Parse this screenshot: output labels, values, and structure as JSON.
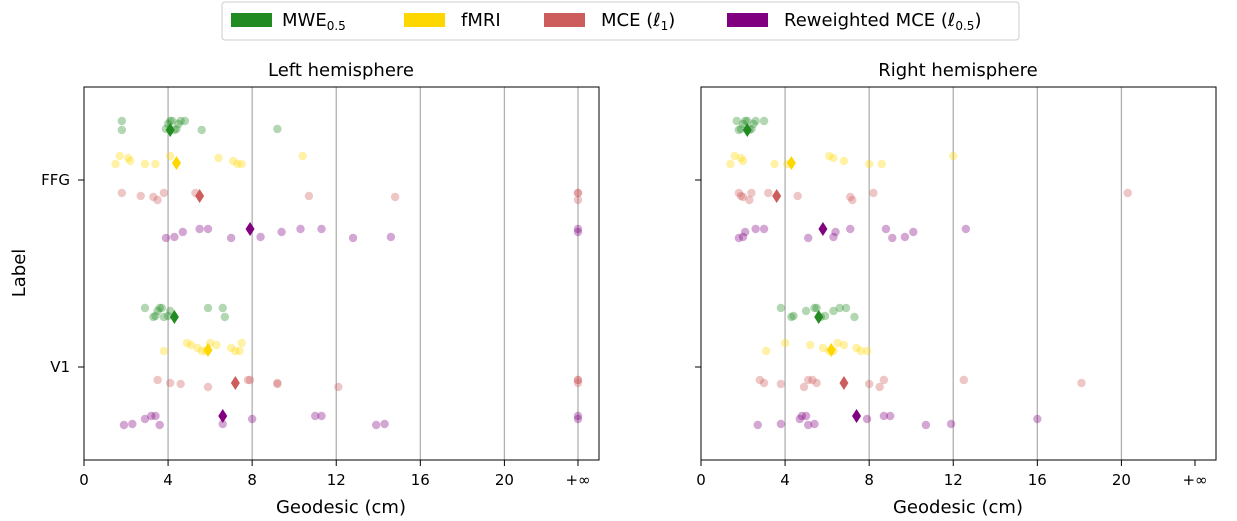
{
  "legend": {
    "items": [
      {
        "label": "MWE",
        "sub": "0.5",
        "suffix": "",
        "color": "#228b22"
      },
      {
        "label": "fMRI",
        "sub": "",
        "suffix": "",
        "color": "#ffd700"
      },
      {
        "label": "MCE (ℓ",
        "sub": "1",
        "suffix": ")",
        "color": "#cd5c5c"
      },
      {
        "label": "Reweighted MCE (ℓ",
        "sub": "0.5",
        "suffix": ")",
        "color": "#800080"
      }
    ]
  },
  "chart_data": [
    {
      "type": "scatter",
      "title": "Left hemisphere",
      "xlabel": "Geodesic (cm)",
      "ylabel": "Label",
      "xlim": [
        0,
        24.5
      ],
      "xticks": [
        "0",
        "4",
        "8",
        "12",
        "16",
        "20",
        "+∞"
      ],
      "xtick_values": [
        0,
        4,
        8,
        12,
        16,
        20,
        23.5
      ],
      "grid_vertical": [
        4,
        8,
        12,
        16,
        20,
        23.5
      ],
      "categories": [
        "FFG",
        "V1"
      ],
      "series": [
        {
          "name": "MWE0.5",
          "color": "#228b22",
          "points": {
            "FFG": [
              1.8,
              1.8,
              3.9,
              4.0,
              4.1,
              4.2,
              4.3,
              4.4,
              4.5,
              4.6,
              4.8,
              5.6,
              9.2
            ],
            "V1": [
              2.9,
              3.3,
              3.4,
              3.5,
              3.6,
              3.7,
              3.8,
              4.0,
              4.1,
              5.9,
              6.6,
              6.7
            ]
          },
          "marker": {
            "FFG": 4.1,
            "V1": 4.3
          }
        },
        {
          "name": "fMRI",
          "color": "#ffd700",
          "points": {
            "FFG": [
              1.5,
              1.7,
              2.1,
              2.2,
              2.9,
              3.4,
              4.1,
              6.4,
              7.1,
              7.3,
              7.5,
              10.4
            ],
            "V1": [
              3.8,
              4.9,
              5.1,
              5.4,
              5.6,
              5.8,
              6.0,
              6.3,
              7.0,
              7.2,
              7.4,
              7.5
            ]
          },
          "marker": {
            "FFG": 4.4,
            "V1": 5.9
          }
        },
        {
          "name": "MCE (ℓ1)",
          "color": "#cd5c5c",
          "points": {
            "FFG": [
              1.8,
              2.7,
              3.3,
              3.5,
              3.8,
              5.3,
              10.7,
              14.8,
              23.5,
              23.5,
              23.5
            ],
            "V1": [
              3.5,
              4.1,
              4.6,
              5.9,
              7.8,
              7.9,
              9.2,
              9.2,
              12.1,
              23.5,
              23.5,
              23.5
            ]
          },
          "marker": {
            "FFG": 5.5,
            "V1": 7.2
          }
        },
        {
          "name": "Reweighted MCE (ℓ0.5)",
          "color": "#800080",
          "points": {
            "FFG": [
              3.9,
              4.3,
              4.7,
              5.5,
              5.9,
              7.0,
              8.4,
              9.4,
              10.3,
              11.3,
              12.8,
              14.6,
              23.5,
              23.5
            ],
            "V1": [
              1.9,
              2.3,
              2.9,
              3.2,
              3.4,
              3.6,
              6.6,
              8.0,
              11.0,
              11.3,
              13.9,
              14.3,
              23.5,
              23.5
            ]
          },
          "marker": {
            "FFG": 7.9,
            "V1": 6.6
          }
        }
      ]
    },
    {
      "type": "scatter",
      "title": "Right hemisphere",
      "xlabel": "Geodesic (cm)",
      "ylabel": "",
      "xlim": [
        0,
        24.5
      ],
      "xticks": [
        "0",
        "4",
        "8",
        "12",
        "16",
        "20",
        "+∞"
      ],
      "xtick_values": [
        0,
        4,
        8,
        12,
        16,
        20,
        23.5
      ],
      "grid_vertical": [
        4,
        8,
        12,
        16,
        20
      ],
      "categories": [
        "FFG",
        "V1"
      ],
      "series": [
        {
          "name": "MWE0.5",
          "color": "#228b22",
          "points": {
            "FFG": [
              1.7,
              1.8,
              1.9,
              2.0,
              2.1,
              2.2,
              2.3,
              2.4,
              2.5,
              2.6,
              3.0
            ],
            "V1": [
              3.8,
              4.3,
              4.4,
              5.0,
              5.4,
              5.5,
              5.7,
              5.9,
              6.3,
              6.6,
              6.9,
              7.3
            ]
          },
          "marker": {
            "FFG": 2.2,
            "V1": 5.6
          }
        },
        {
          "name": "fMRI",
          "color": "#ffd700",
          "points": {
            "FFG": [
              1.4,
              1.6,
              1.9,
              2.0,
              3.5,
              4.1,
              6.1,
              6.3,
              6.8,
              8.0,
              8.6,
              12.0
            ],
            "V1": [
              3.1,
              4.0,
              5.2,
              5.8,
              6.1,
              6.3,
              6.5,
              6.8,
              7.4,
              7.6,
              7.9
            ]
          },
          "marker": {
            "FFG": 4.3,
            "V1": 6.2
          }
        },
        {
          "name": "MCE (ℓ1)",
          "color": "#cd5c5c",
          "points": {
            "FFG": [
              1.8,
              1.9,
              2.0,
              2.3,
              2.4,
              3.2,
              4.6,
              7.1,
              7.2,
              8.2,
              20.3
            ],
            "V1": [
              2.8,
              3.0,
              3.8,
              4.9,
              5.1,
              5.3,
              5.5,
              8.0,
              8.5,
              8.7,
              12.5,
              18.1
            ]
          },
          "marker": {
            "FFG": 3.6,
            "V1": 6.8
          }
        },
        {
          "name": "Reweighted MCE (ℓ0.5)",
          "color": "#800080",
          "points": {
            "FFG": [
              1.8,
              2.0,
              2.1,
              2.6,
              3.0,
              5.1,
              6.3,
              6.4,
              7.1,
              8.8,
              9.1,
              9.7,
              10.1,
              12.6
            ],
            "V1": [
              2.7,
              3.8,
              4.7,
              4.8,
              5.0,
              5.1,
              5.4,
              7.9,
              8.7,
              9.0,
              10.7,
              11.9,
              16.0
            ]
          },
          "marker": {
            "FFG": 5.8,
            "V1": 7.4
          }
        }
      ]
    }
  ]
}
